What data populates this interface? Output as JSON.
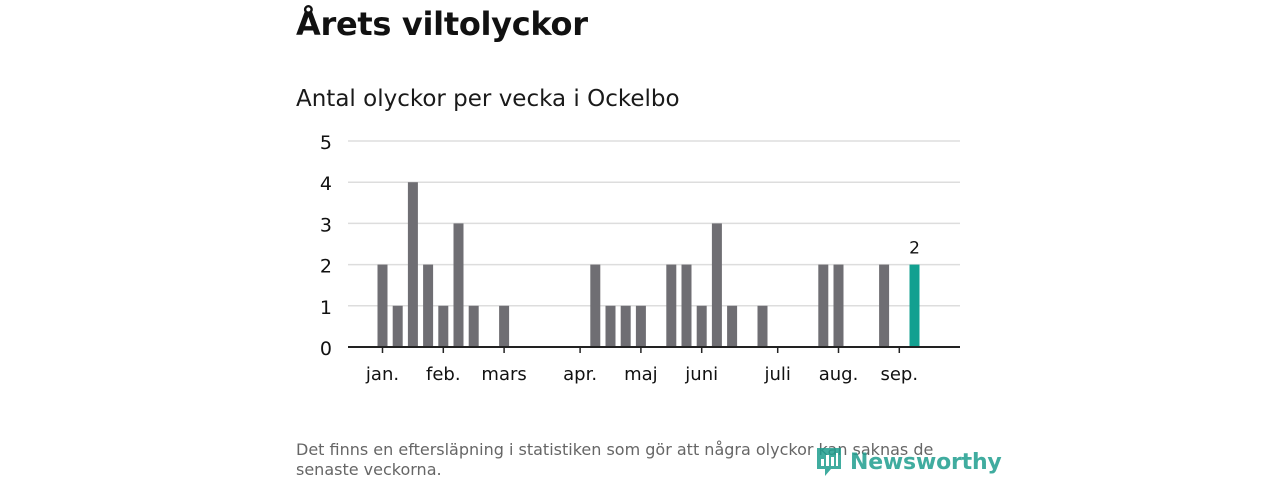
{
  "page": {
    "heading": "Årets viltolyckor",
    "footnote": "Det finns en eftersläpning i statistiken som gör att några olyckor kan saknas de senaste veckorna.",
    "brand": "Newsworthy"
  },
  "colors": {
    "bar": "#6f6e73",
    "highlight": "#12a090",
    "grid": "#dddddd",
    "axis": "#222222",
    "text": "#111111",
    "brand": "#1f9e8f"
  },
  "chart_data": {
    "type": "bar",
    "title": "Antal olyckor per vecka i Ockelbo",
    "xlabel": "",
    "ylabel": "",
    "ylim": [
      0,
      5
    ],
    "yticks": [
      0,
      1,
      2,
      3,
      4,
      5
    ],
    "grid": true,
    "weeks": [
      1,
      2,
      3,
      4,
      5,
      6,
      7,
      8,
      9,
      10,
      11,
      12,
      13,
      14,
      15,
      16,
      17,
      18,
      19,
      20,
      21,
      22,
      23,
      24,
      25,
      26,
      27,
      28,
      29,
      30,
      31,
      32,
      33,
      34,
      35,
      36,
      37,
      38,
      39
    ],
    "values": [
      2,
      1,
      4,
      2,
      1,
      3,
      1,
      0,
      1,
      0,
      0,
      0,
      0,
      0,
      2,
      1,
      1,
      1,
      0,
      2,
      2,
      1,
      3,
      1,
      0,
      1,
      0,
      0,
      0,
      2,
      2,
      0,
      0,
      2,
      0,
      2,
      null,
      null,
      null
    ],
    "highlight_week": 36,
    "highlight_label": "2",
    "month_labels": [
      {
        "label": "jan.",
        "week": 1
      },
      {
        "label": "feb.",
        "week": 5
      },
      {
        "label": "mars",
        "week": 9
      },
      {
        "label": "apr.",
        "week": 14
      },
      {
        "label": "maj",
        "week": 18
      },
      {
        "label": "juni",
        "week": 22
      },
      {
        "label": "juli",
        "week": 27
      },
      {
        "label": "aug.",
        "week": 31
      },
      {
        "label": "sep.",
        "week": 35
      }
    ]
  }
}
